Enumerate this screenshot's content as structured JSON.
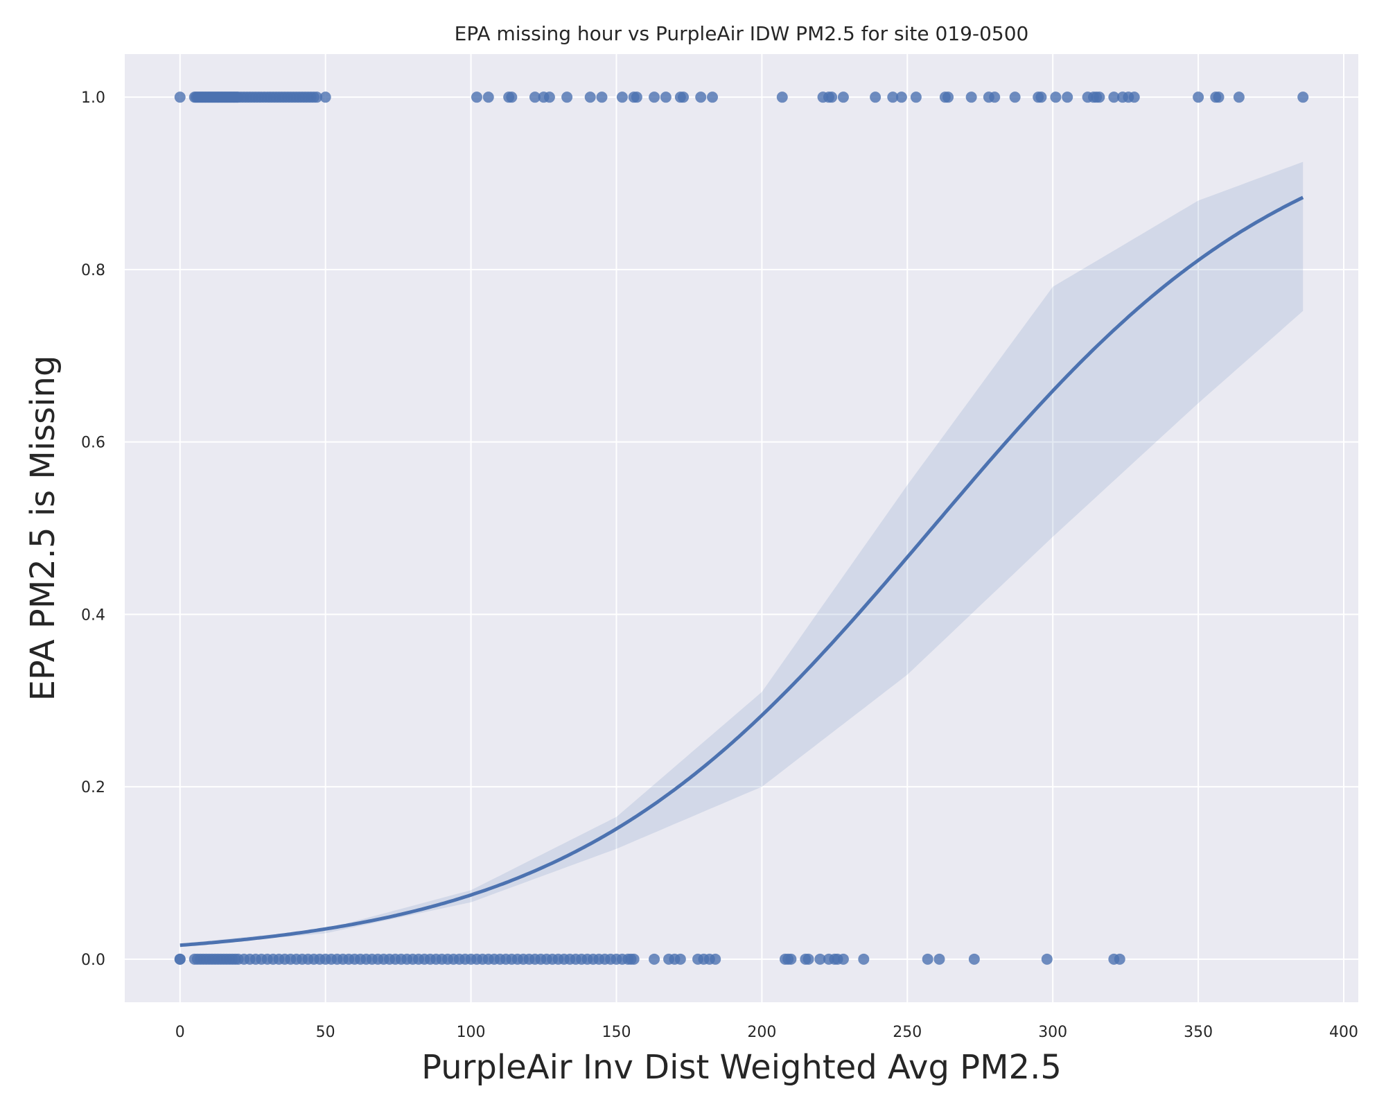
{
  "chart_data": {
    "type": "scatter",
    "title": "EPA missing hour vs PurpleAir IDW PM2.5 for site 019-0500",
    "xlabel": "PurpleAir Inv Dist Weighted Avg PM2.5",
    "ylabel": "EPA PM2.5 is Missing",
    "xlim": [
      -19,
      405
    ],
    "ylim": [
      -0.05,
      1.05
    ],
    "xticks": [
      0,
      50,
      100,
      150,
      200,
      250,
      300,
      350,
      400
    ],
    "xtick_labels": [
      "0",
      "50",
      "100",
      "150",
      "200",
      "250",
      "300",
      "350",
      "400"
    ],
    "yticks": [
      0.0,
      0.2,
      0.4,
      0.6,
      0.8,
      1.0
    ],
    "ytick_labels": [
      "0.0",
      "0.2",
      "0.4",
      "0.6",
      "0.8",
      "1.0"
    ],
    "grid": true,
    "background_color": "#eaeaf2",
    "series_color": "#4c72b0",
    "points_missing": [
      0,
      5,
      5.5,
      6,
      6.5,
      7,
      7.5,
      8,
      8.5,
      9,
      9.5,
      10,
      10.5,
      11,
      11.5,
      12,
      12.5,
      13,
      13.5,
      14,
      14.5,
      15,
      15.5,
      16,
      16.5,
      17,
      17.5,
      18,
      18.5,
      19,
      19.5,
      20,
      21,
      22,
      23,
      24,
      25,
      26,
      27,
      28,
      29,
      30,
      31,
      32,
      33,
      34,
      35,
      36,
      37,
      38,
      39,
      40,
      41,
      42,
      43,
      44,
      45,
      46,
      47,
      50,
      102,
      106,
      113,
      114,
      122,
      125,
      127,
      133,
      141,
      145,
      152,
      156,
      157,
      163,
      167,
      172,
      173,
      179,
      183,
      207,
      221,
      223,
      224,
      228,
      239,
      245,
      248,
      253,
      263,
      264,
      272,
      278,
      280,
      287,
      295,
      296,
      301,
      305,
      312,
      314,
      315,
      316,
      321,
      324,
      326,
      328,
      350,
      356,
      357,
      364,
      386
    ],
    "points_present": [
      0,
      0,
      5,
      6,
      7,
      8,
      9,
      10,
      11,
      12,
      13,
      14,
      15,
      16,
      17,
      18,
      19,
      20,
      22,
      24,
      26,
      28,
      30,
      32,
      34,
      36,
      38,
      40,
      42,
      44,
      46,
      48,
      50,
      52,
      54,
      56,
      58,
      60,
      62,
      64,
      66,
      68,
      70,
      72,
      74,
      76,
      78,
      80,
      82,
      84,
      86,
      88,
      90,
      92,
      94,
      96,
      98,
      100,
      102,
      104,
      106,
      108,
      110,
      112,
      114,
      116,
      118,
      120,
      122,
      124,
      126,
      128,
      130,
      132,
      134,
      136,
      138,
      140,
      142,
      144,
      146,
      148,
      150,
      152,
      154,
      155,
      156,
      163,
      168,
      170,
      172,
      178,
      180,
      182,
      184,
      208,
      209,
      210,
      215,
      216,
      220,
      223,
      225,
      226,
      228,
      235,
      257,
      261,
      273,
      298,
      321,
      323
    ],
    "logistic_fit": {
      "b0": -4.11,
      "b1": 0.0159,
      "x_range": [
        0,
        386
      ]
    },
    "confidence_band": {
      "x": [
        0,
        50,
        100,
        150,
        200,
        250,
        300,
        350,
        386
      ],
      "lower": [
        0.015,
        0.03,
        0.066,
        0.128,
        0.2,
        0.33,
        0.49,
        0.645,
        0.752
      ],
      "upper": [
        0.018,
        0.035,
        0.08,
        0.165,
        0.31,
        0.55,
        0.78,
        0.88,
        0.925
      ]
    }
  }
}
